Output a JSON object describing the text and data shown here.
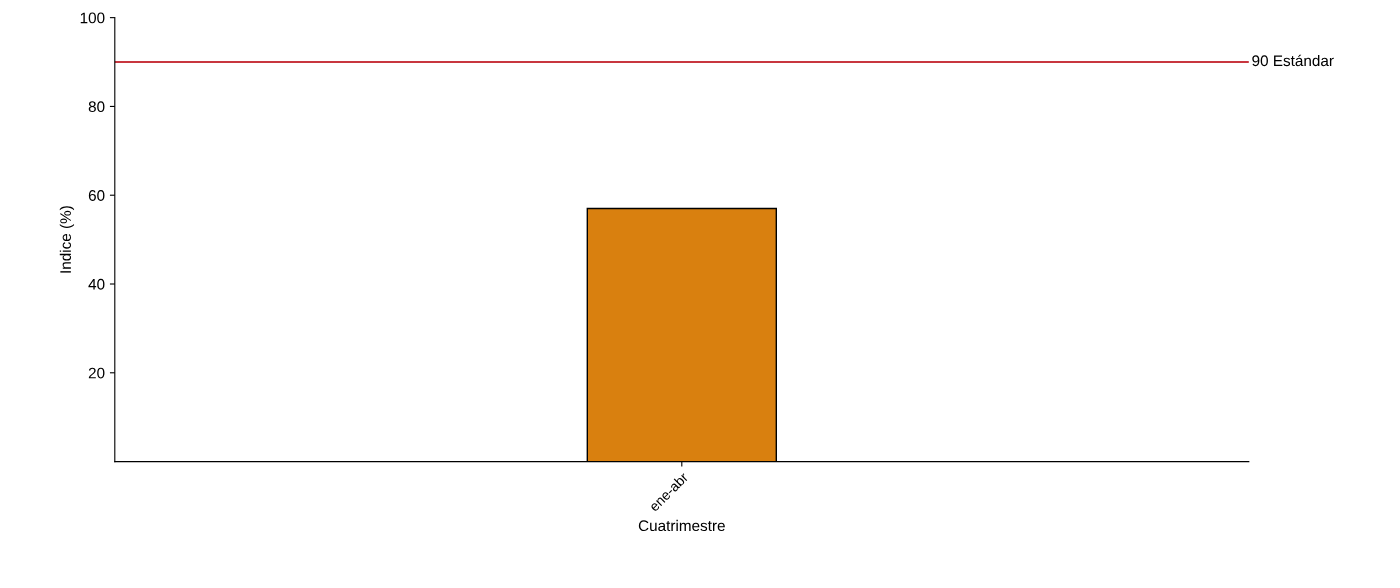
{
  "chart_data": {
    "type": "bar",
    "xlabel": "Cuatrimestre",
    "ylabel": "Indice (%)",
    "categories": [
      "ene-abr"
    ],
    "values": [
      57
    ],
    "color": "#d9800f",
    "ylim": [
      0,
      100
    ],
    "yticks": [
      20,
      40,
      60,
      80,
      100
    ],
    "ref_lines": [
      {
        "axis": "y",
        "value": 90,
        "label": "90 Estándar",
        "color": "#c8363f"
      }
    ],
    "grid": false,
    "legend": false
  }
}
